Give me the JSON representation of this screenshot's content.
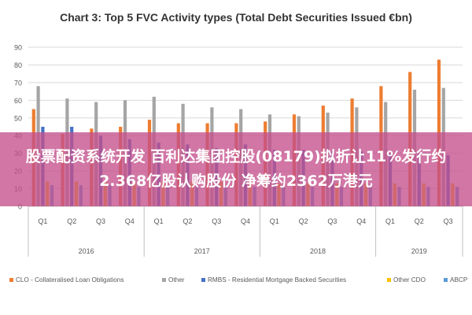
{
  "banner": {
    "text": "股票配资系统开发 百利达集团控股(08179)拟折让11%发行约2.368亿股认购股份 净筹约2362万港元"
  },
  "chart_data": {
    "type": "bar",
    "title": "Chart 3: Top 5 FVC Activity types (Total Debt Securities Issued €bn)",
    "xlabel": "",
    "ylabel": "",
    "ylim": [
      0,
      90
    ],
    "yticks": [
      0,
      10,
      20,
      30,
      40,
      50,
      60,
      70,
      80,
      90
    ],
    "grid": true,
    "legend_position": "bottom",
    "categories": [
      "Q1",
      "Q2",
      "Q3",
      "Q4",
      "Q1",
      "Q2",
      "Q3",
      "Q4",
      "Q1",
      "Q2",
      "Q3",
      "Q4",
      "Q1",
      "Q2",
      "Q3"
    ],
    "groups": [
      {
        "label": "2016",
        "count": 4
      },
      {
        "label": "2017",
        "count": 4
      },
      {
        "label": "2018",
        "count": 4
      },
      {
        "label": "2019",
        "count": 3
      }
    ],
    "series": [
      {
        "name": "CLO - Collateralised Loan Obligations",
        "color": "#ed7d31",
        "values": [
          55,
          41,
          44,
          45,
          49,
          47,
          47,
          47,
          48,
          52,
          57,
          61,
          68,
          76,
          83
        ]
      },
      {
        "name": "Other",
        "color": "#a5a5a5",
        "values": [
          68,
          61,
          59,
          60,
          62,
          58,
          56,
          55,
          52,
          51,
          53,
          56,
          59,
          66,
          67
        ]
      },
      {
        "name": "RMBS - Residential Mortgage Backed Securities",
        "color": "#4472c4",
        "values": [
          45,
          45,
          40,
          38,
          36,
          35,
          33,
          35,
          32,
          32,
          31,
          31,
          30,
          30,
          29
        ]
      },
      {
        "name": "Other CDO",
        "color": "#ffc000",
        "values": [
          14,
          14,
          14,
          14,
          14,
          14,
          14,
          14,
          13,
          13,
          13,
          13,
          13,
          13,
          13
        ]
      },
      {
        "name": "ABCP",
        "color": "#5b9bd5",
        "values": [
          12,
          12,
          12,
          11,
          11,
          11,
          11,
          11,
          11,
          11,
          11,
          11,
          11,
          11,
          11
        ]
      }
    ]
  }
}
